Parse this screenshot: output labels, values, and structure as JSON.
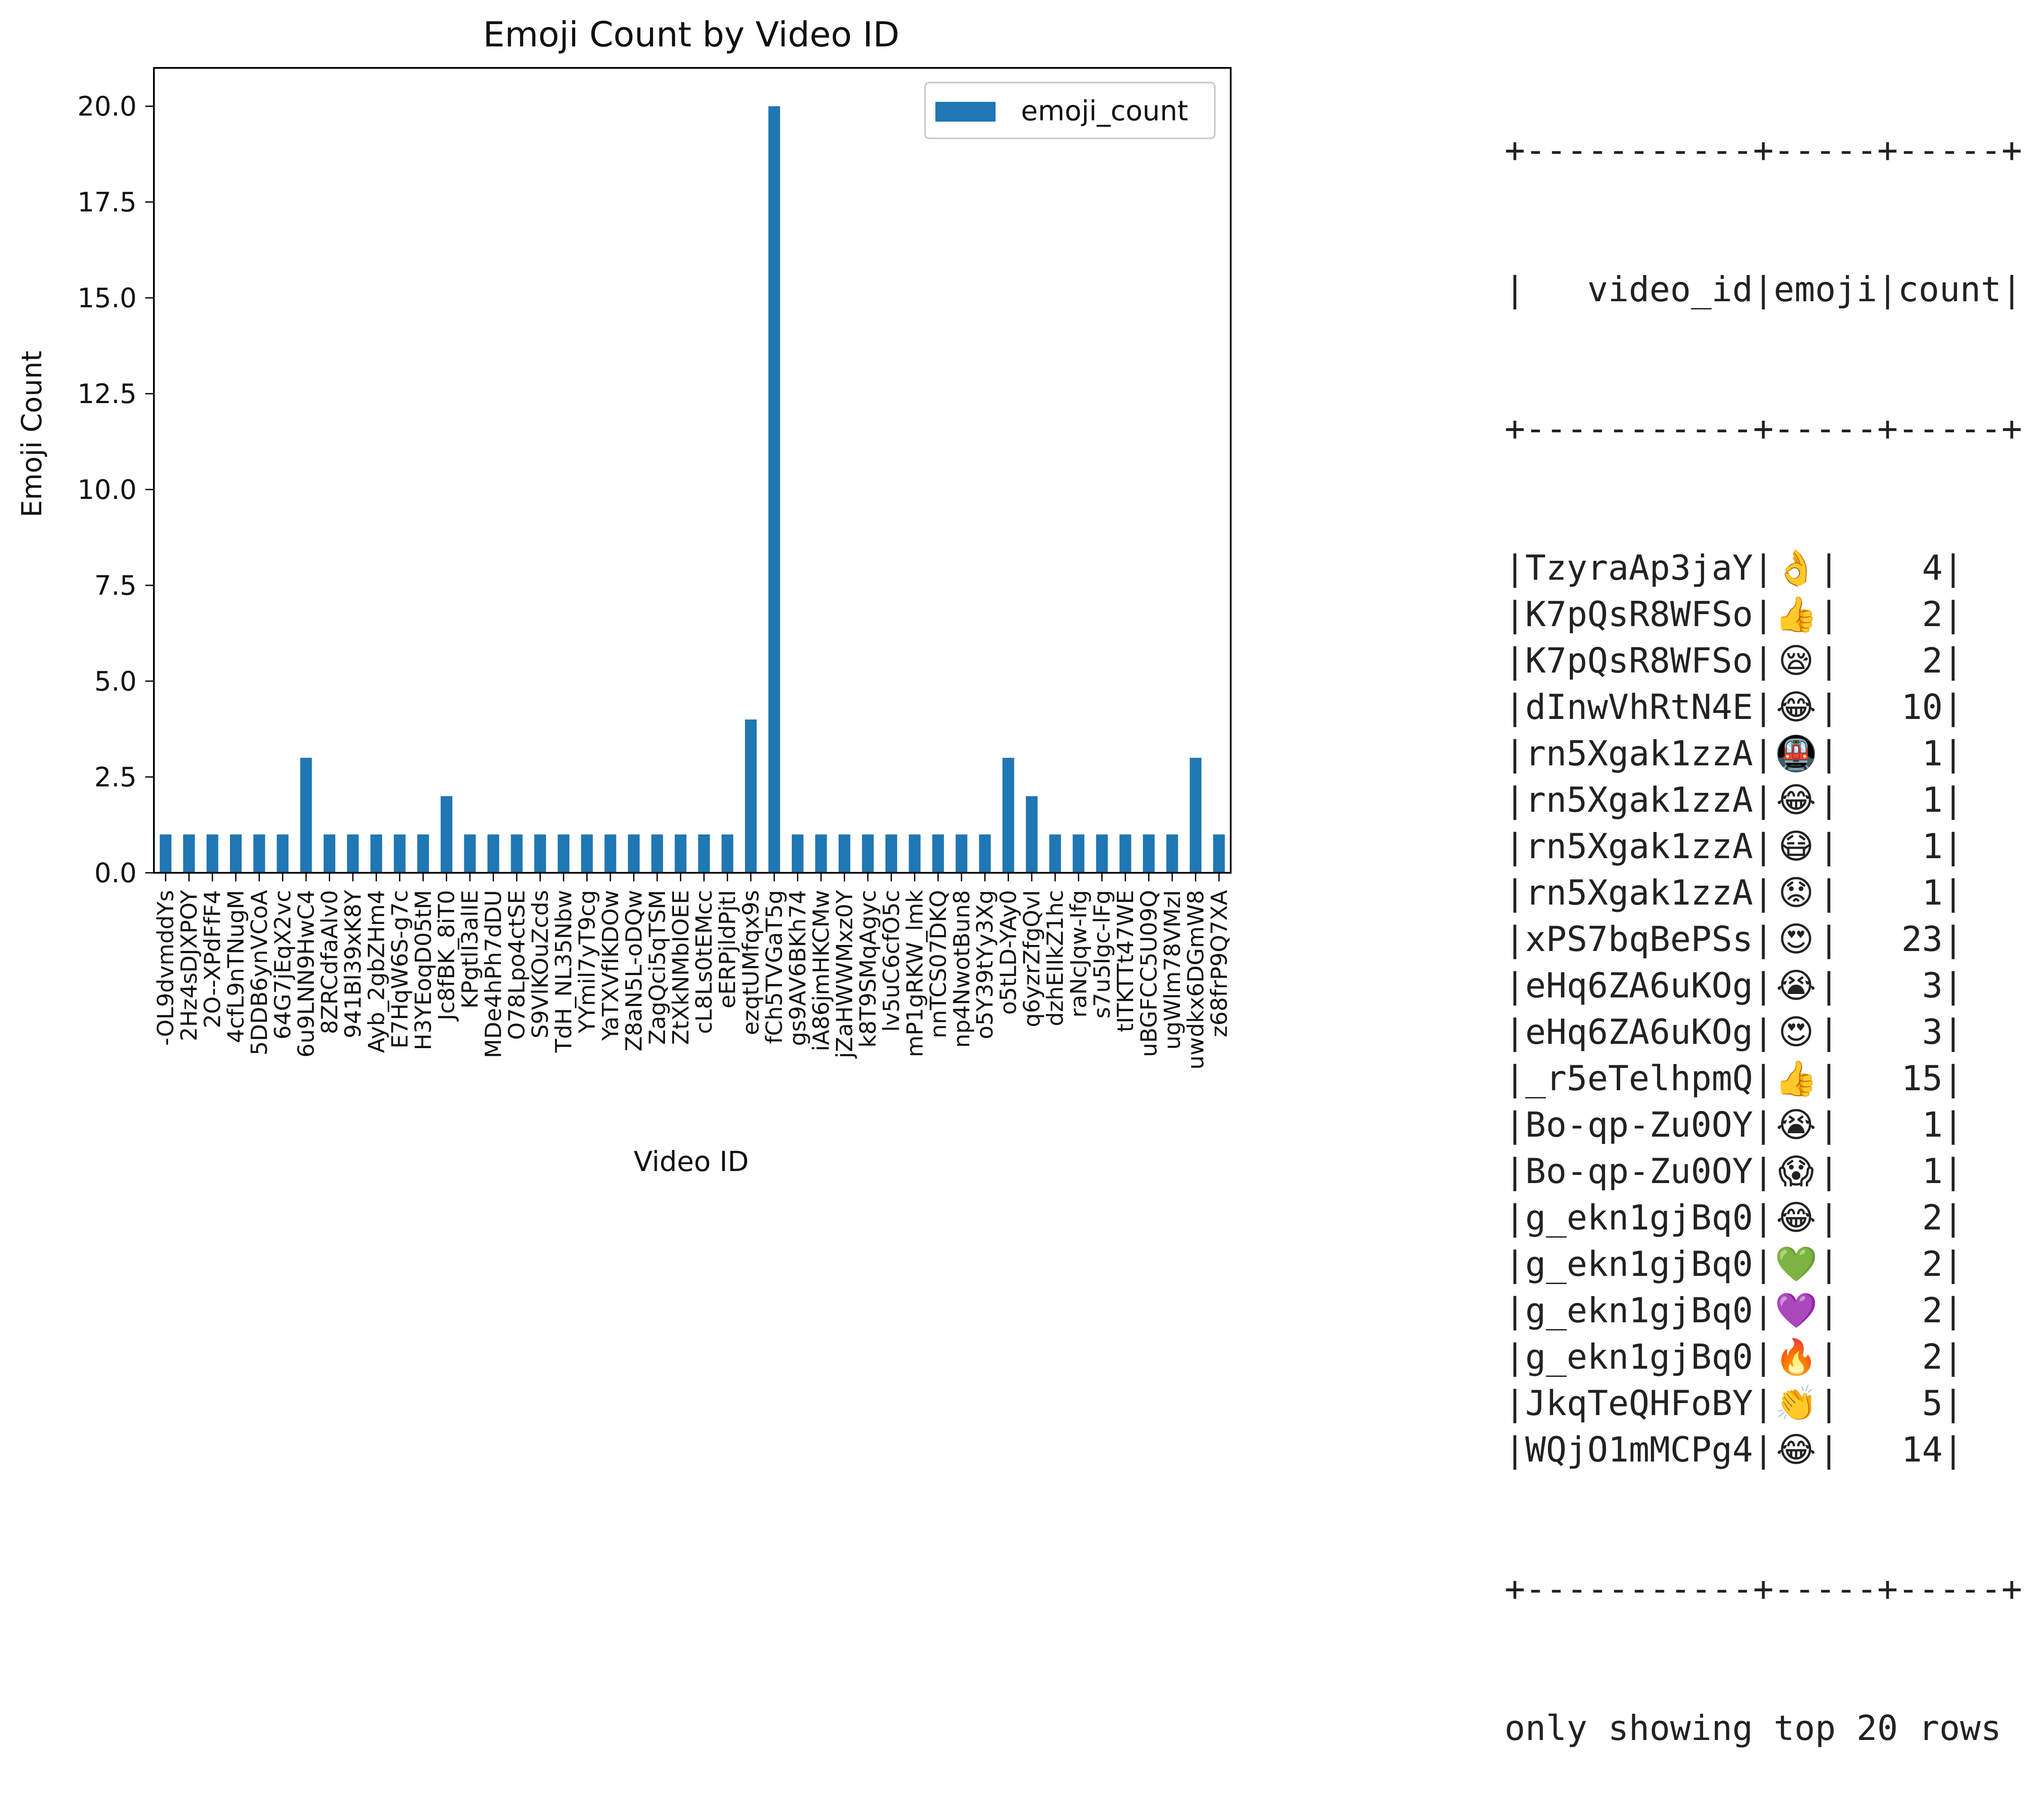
{
  "chart_data": {
    "type": "bar",
    "title": "Emoji Count by Video ID",
    "xlabel": "Video ID",
    "ylabel": "Emoji Count",
    "legend": [
      "emoji_count"
    ],
    "legend_position": "top-right",
    "ylim": [
      0,
      21
    ],
    "yticks": [
      "0.0",
      "2.5",
      "5.0",
      "7.5",
      "10.0",
      "12.5",
      "15.0",
      "17.5",
      "20.0"
    ],
    "bar_color": "#1f77b4",
    "grid": false,
    "categories": [
      "-OL9dvmddYs",
      "2Hz4sDJXPOY",
      "2O--XPdFfF4",
      "4cfL9nTNugM",
      "5DDB6ynVCoA",
      "64G7jEqX2vc",
      "6u9LNN9HwC4",
      "8ZRCdfaAlv0",
      "941Bl39xK8Y",
      "Ayb_2gbZHm4",
      "E7HqW6S-g7c",
      "H3YEoqD05tM",
      "Jc8fBK_8iT0",
      "KPgtlI3alIE",
      "MDe4hPh7dDU",
      "O78Lpo4ctSE",
      "S9VlKOuZcds",
      "TdH_NL35Nbw",
      "YYmil7yT9cg",
      "YaTXVfIKDOw",
      "Z8aN5L-oDQw",
      "ZagQci5qTSM",
      "ZtXkNMbIOEE",
      "cL8Ls0tEMcc",
      "eERPjldPjtI",
      "ezqtUMfqx9s",
      "fCh5TVGaT5g",
      "gs9AV6BKh74",
      "iA86jmHKCMw",
      "jZaHWWMxz0Y",
      "k8T9SMqAgyc",
      "lv5uC6cfO5c",
      "mP1gRKW_lmk",
      "nnTCS07DKQ",
      "np4NwotBun8",
      "o5Y39tYy3Xg",
      "o5tLD-YAy0",
      "q6yzrZfgQvI",
      "dzhEIIkZ1hc",
      "raNcJqw-Ifg",
      "s7u5Igc-lFg",
      "tITKTTt47WE",
      "uBGFCC5U09Q",
      "ugWlm78VMzI",
      "uwdkx6DGmW8",
      "z68frP9Q7XA"
    ],
    "values": [
      1,
      1,
      1,
      1,
      1,
      1,
      3,
      1,
      1,
      1,
      1,
      1,
      2,
      1,
      1,
      1,
      1,
      1,
      1,
      1,
      1,
      1,
      1,
      1,
      1,
      4,
      20,
      1,
      1,
      1,
      1,
      1,
      1,
      1,
      1,
      1,
      3,
      2,
      1,
      1,
      1,
      1,
      1,
      1,
      3,
      1
    ]
  },
  "table": {
    "border": "+-----------+-----+-----+",
    "header": "|   video_id|emoji|count|",
    "rows": [
      {
        "video_id": "TzyraAp3jaY",
        "emoji": "👌",
        "count": "4"
      },
      {
        "video_id": "K7pQsR8WFSo",
        "emoji": "👍",
        "count": "2"
      },
      {
        "video_id": "K7pQsR8WFSo",
        "emoji": "😪",
        "count": "2"
      },
      {
        "video_id": "dInwVhRtN4E",
        "emoji": "😂",
        "count": "10"
      },
      {
        "video_id": "rn5Xgak1zzA",
        "emoji": "🚇",
        "count": "1"
      },
      {
        "video_id": "rn5Xgak1zzA",
        "emoji": "😂",
        "count": "1"
      },
      {
        "video_id": "rn5Xgak1zzA",
        "emoji": "😷",
        "count": "1"
      },
      {
        "video_id": "rn5Xgak1zzA",
        "emoji": "😟",
        "count": "1"
      },
      {
        "video_id": "xPS7bqBePSs",
        "emoji": "😍",
        "count": "23"
      },
      {
        "video_id": "eHq6ZA6uKOg",
        "emoji": "😭",
        "count": "3"
      },
      {
        "video_id": "eHq6ZA6uKOg",
        "emoji": "😍",
        "count": "3"
      },
      {
        "video_id": "_r5eTelhpmQ",
        "emoji": "👍",
        "count": "15"
      },
      {
        "video_id": "Bo-qp-Zu0OY",
        "emoji": "😭",
        "count": "1"
      },
      {
        "video_id": "Bo-qp-Zu0OY",
        "emoji": "😱",
        "count": "1"
      },
      {
        "video_id": "g_ekn1gjBq0",
        "emoji": "😂",
        "count": "2"
      },
      {
        "video_id": "g_ekn1gjBq0",
        "emoji": "💚",
        "count": "2"
      },
      {
        "video_id": "g_ekn1gjBq0",
        "emoji": "💜",
        "count": "2"
      },
      {
        "video_id": "g_ekn1gjBq0",
        "emoji": "🔥",
        "count": "2"
      },
      {
        "video_id": "JkqTeQHFoBY",
        "emoji": "👏",
        "count": "5"
      },
      {
        "video_id": "WQjO1mMCPg4",
        "emoji": "😂",
        "count": "14"
      }
    ],
    "footer": "only showing top 20 rows"
  }
}
